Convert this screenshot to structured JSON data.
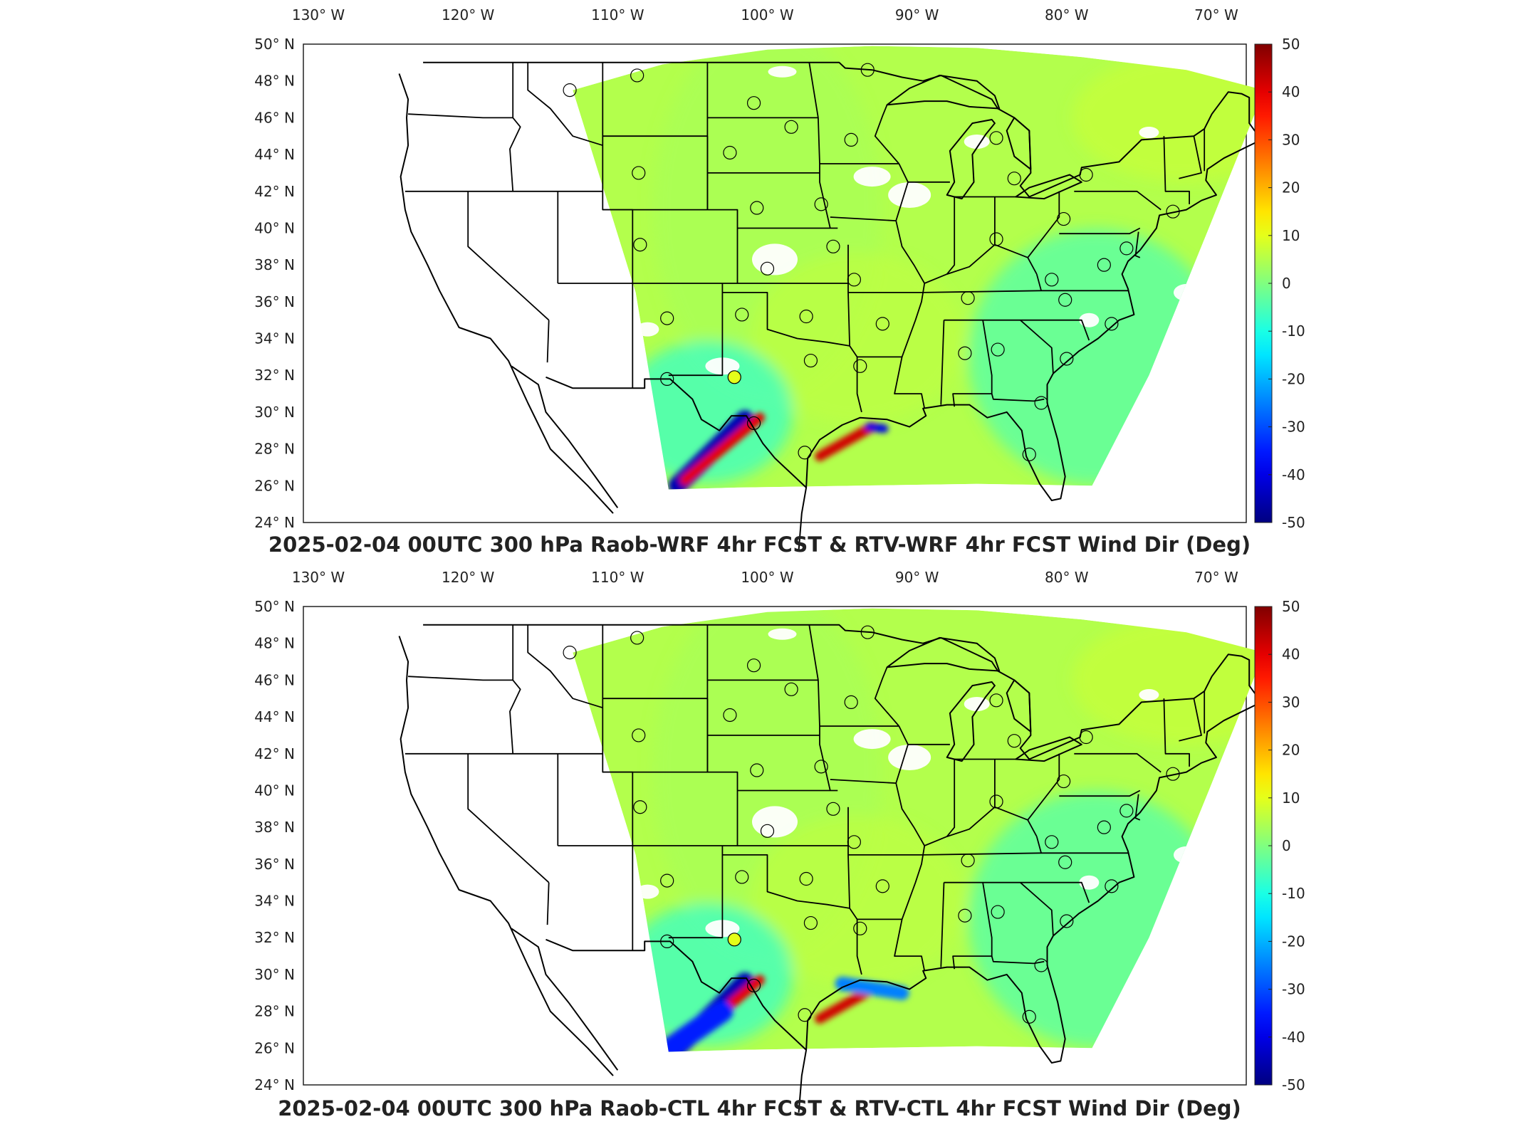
{
  "chart_data": [
    {
      "type": "heatmap",
      "title": "2025-02-04 00UTC 300 hPa Raob-WRF 4hr FCST & RTV-WRF 4hr FCST Wind Dir (Deg)",
      "xlabel": "",
      "ylabel": "",
      "x_ticks": [
        "130° W",
        "120° W",
        "110° W",
        "100° W",
        "90° W",
        "80° W",
        "70° W"
      ],
      "y_ticks": [
        "24° N",
        "26° N",
        "28° N",
        "30° N",
        "32° N",
        "34° N",
        "36° N",
        "38° N",
        "40° N",
        "42° N",
        "44° N",
        "46° N",
        "48° N",
        "50° N"
      ],
      "xlim": [
        -131,
        -68
      ],
      "ylim": [
        24,
        50
      ],
      "colorbar": {
        "min": -50,
        "max": 50,
        "ticks": [
          "50",
          "40",
          "30",
          "20",
          "10",
          "0",
          "-10",
          "-20",
          "-30",
          "-40",
          "-50"
        ],
        "colormap": "jet"
      },
      "grid": false,
      "raob_markers": [
        {
          "lon": -113.2,
          "lat": 47.5,
          "value": 0
        },
        {
          "lon": -108.7,
          "lat": 48.3,
          "value": 0
        },
        {
          "lon": -100.9,
          "lat": 46.8,
          "value": 0
        },
        {
          "lon": -98.4,
          "lat": 45.5,
          "value": 0
        },
        {
          "lon": -94.4,
          "lat": 44.8,
          "value": 0
        },
        {
          "lon": -93.3,
          "lat": 48.6,
          "value": 0
        },
        {
          "lon": -102.5,
          "lat": 44.1,
          "value": 0
        },
        {
          "lon": -108.6,
          "lat": 43.0,
          "value": 0
        },
        {
          "lon": -100.7,
          "lat": 41.1,
          "value": 0
        },
        {
          "lon": -96.4,
          "lat": 41.3,
          "value": 0
        },
        {
          "lon": -108.5,
          "lat": 39.1,
          "value": 0
        },
        {
          "lon": -100.0,
          "lat": 37.8,
          "value": 0
        },
        {
          "lon": -95.6,
          "lat": 39.0,
          "value": 0
        },
        {
          "lon": -94.2,
          "lat": 37.2,
          "value": 0
        },
        {
          "lon": -106.7,
          "lat": 35.1,
          "value": 0
        },
        {
          "lon": -101.7,
          "lat": 35.3,
          "value": 0
        },
        {
          "lon": -97.4,
          "lat": 35.2,
          "value": 0
        },
        {
          "lon": -92.3,
          "lat": 34.8,
          "value": 0
        },
        {
          "lon": -97.1,
          "lat": 32.8,
          "value": 0
        },
        {
          "lon": -93.8,
          "lat": 32.5,
          "value": 0
        },
        {
          "lon": -106.7,
          "lat": 31.8,
          "value": 0
        },
        {
          "lon": -102.2,
          "lat": 31.9,
          "value": 10
        },
        {
          "lon": -100.9,
          "lat": 29.4,
          "value": 0
        },
        {
          "lon": -97.5,
          "lat": 27.8,
          "value": 0
        },
        {
          "lon": -86.8,
          "lat": 33.2,
          "value": 0
        },
        {
          "lon": -84.6,
          "lat": 33.4,
          "value": 0
        },
        {
          "lon": -86.6,
          "lat": 36.2,
          "value": 0
        },
        {
          "lon": -81.0,
          "lat": 37.2,
          "value": 0
        },
        {
          "lon": -80.1,
          "lat": 36.1,
          "value": 0
        },
        {
          "lon": -77.0,
          "lat": 34.8,
          "value": 0
        },
        {
          "lon": -80.0,
          "lat": 32.9,
          "value": 0
        },
        {
          "lon": -81.7,
          "lat": 30.5,
          "value": 0
        },
        {
          "lon": -82.5,
          "lat": 27.7,
          "value": 0
        },
        {
          "lon": -84.7,
          "lat": 39.4,
          "value": 0
        },
        {
          "lon": -83.5,
          "lat": 42.7,
          "value": 0
        },
        {
          "lon": -84.7,
          "lat": 44.9,
          "value": 0
        },
        {
          "lon": -80.2,
          "lat": 40.5,
          "value": 0
        },
        {
          "lon": -78.7,
          "lat": 42.9,
          "value": 0
        },
        {
          "lon": -77.5,
          "lat": 38.0,
          "value": 0
        },
        {
          "lon": -76.0,
          "lat": 38.9,
          "value": 0
        },
        {
          "lon": -72.9,
          "lat": 40.9,
          "value": 0
        }
      ]
    },
    {
      "type": "heatmap",
      "title": "2025-02-04 00UTC 300 hPa Raob-CTL 4hr FCST & RTV-CTL 4hr FCST Wind Dir (Deg)",
      "xlabel": "",
      "ylabel": "",
      "x_ticks": [
        "130° W",
        "120° W",
        "110° W",
        "100° W",
        "90° W",
        "80° W",
        "70° W"
      ],
      "y_ticks": [
        "24° N",
        "26° N",
        "28° N",
        "30° N",
        "32° N",
        "34° N",
        "36° N",
        "38° N",
        "40° N",
        "42° N",
        "44° N",
        "46° N",
        "48° N",
        "50° N"
      ],
      "xlim": [
        -131,
        -68
      ],
      "ylim": [
        24,
        50
      ],
      "colorbar": {
        "min": -50,
        "max": 50,
        "ticks": [
          "50",
          "40",
          "30",
          "20",
          "10",
          "0",
          "-10",
          "-20",
          "-30",
          "-40",
          "-50"
        ],
        "colormap": "jet"
      },
      "grid": false,
      "raob_markers": [
        {
          "lon": -113.2,
          "lat": 47.5,
          "value": 0
        },
        {
          "lon": -108.7,
          "lat": 48.3,
          "value": 0
        },
        {
          "lon": -100.9,
          "lat": 46.8,
          "value": 0
        },
        {
          "lon": -98.4,
          "lat": 45.5,
          "value": 0
        },
        {
          "lon": -94.4,
          "lat": 44.8,
          "value": 0
        },
        {
          "lon": -93.3,
          "lat": 48.6,
          "value": 0
        },
        {
          "lon": -102.5,
          "lat": 44.1,
          "value": 0
        },
        {
          "lon": -108.6,
          "lat": 43.0,
          "value": 0
        },
        {
          "lon": -100.7,
          "lat": 41.1,
          "value": 0
        },
        {
          "lon": -96.4,
          "lat": 41.3,
          "value": 0
        },
        {
          "lon": -108.5,
          "lat": 39.1,
          "value": 0
        },
        {
          "lon": -100.0,
          "lat": 37.8,
          "value": 0
        },
        {
          "lon": -95.6,
          "lat": 39.0,
          "value": 0
        },
        {
          "lon": -94.2,
          "lat": 37.2,
          "value": 0
        },
        {
          "lon": -106.7,
          "lat": 35.1,
          "value": 0
        },
        {
          "lon": -101.7,
          "lat": 35.3,
          "value": 0
        },
        {
          "lon": -97.4,
          "lat": 35.2,
          "value": 0
        },
        {
          "lon": -92.3,
          "lat": 34.8,
          "value": 0
        },
        {
          "lon": -97.1,
          "lat": 32.8,
          "value": 0
        },
        {
          "lon": -93.8,
          "lat": 32.5,
          "value": 0
        },
        {
          "lon": -106.7,
          "lat": 31.8,
          "value": 0
        },
        {
          "lon": -102.2,
          "lat": 31.9,
          "value": 10
        },
        {
          "lon": -100.9,
          "lat": 29.4,
          "value": 0
        },
        {
          "lon": -97.5,
          "lat": 27.8,
          "value": 0
        },
        {
          "lon": -86.8,
          "lat": 33.2,
          "value": 0
        },
        {
          "lon": -84.6,
          "lat": 33.4,
          "value": 0
        },
        {
          "lon": -86.6,
          "lat": 36.2,
          "value": 0
        },
        {
          "lon": -81.0,
          "lat": 37.2,
          "value": 0
        },
        {
          "lon": -80.1,
          "lat": 36.1,
          "value": 0
        },
        {
          "lon": -77.0,
          "lat": 34.8,
          "value": 0
        },
        {
          "lon": -80.0,
          "lat": 32.9,
          "value": 0
        },
        {
          "lon": -81.7,
          "lat": 30.5,
          "value": 0
        },
        {
          "lon": -82.5,
          "lat": 27.7,
          "value": 0
        },
        {
          "lon": -84.7,
          "lat": 39.4,
          "value": 0
        },
        {
          "lon": -83.5,
          "lat": 42.7,
          "value": 0
        },
        {
          "lon": -84.7,
          "lat": 44.9,
          "value": 0
        },
        {
          "lon": -80.2,
          "lat": 40.5,
          "value": 0
        },
        {
          "lon": -78.7,
          "lat": 42.9,
          "value": 0
        },
        {
          "lon": -77.5,
          "lat": 38.0,
          "value": 0
        },
        {
          "lon": -76.0,
          "lat": 38.9,
          "value": 0
        },
        {
          "lon": -72.9,
          "lat": 40.9,
          "value": 0
        }
      ]
    }
  ]
}
